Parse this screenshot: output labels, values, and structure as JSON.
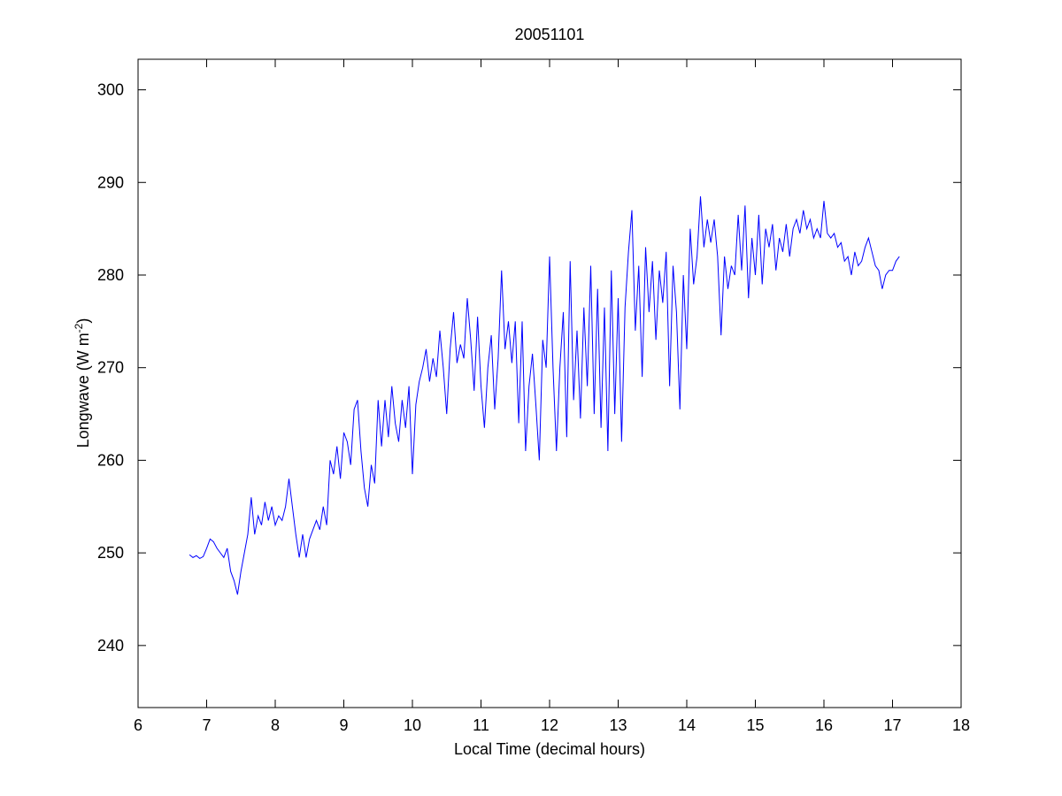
{
  "chart_data": {
    "type": "line",
    "title": "20051101",
    "x_label": "Local Time (decimal hours)",
    "y_label": {
      "text": "Longwave (W m",
      "superscript": "-2",
      "suffix": ")"
    },
    "color": "#0000ff",
    "grid": false,
    "xlim": [
      6,
      18
    ],
    "xticks": [
      6,
      7,
      8,
      9,
      10,
      11,
      12,
      13,
      14,
      15,
      16,
      17,
      18
    ],
    "ylim": [
      233.3,
      303.3
    ],
    "yticks": [
      240,
      250,
      260,
      270,
      280,
      290,
      300
    ],
    "x": [
      6.75,
      6.8,
      6.85,
      6.9,
      6.95,
      7.0,
      7.05,
      7.1,
      7.15,
      7.2,
      7.25,
      7.3,
      7.35,
      7.4,
      7.45,
      7.5,
      7.55,
      7.6,
      7.65,
      7.7,
      7.75,
      7.8,
      7.85,
      7.9,
      7.95,
      8.0,
      8.05,
      8.1,
      8.15,
      8.2,
      8.25,
      8.3,
      8.35,
      8.4,
      8.45,
      8.5,
      8.55,
      8.6,
      8.65,
      8.7,
      8.75,
      8.8,
      8.85,
      8.9,
      8.95,
      9.0,
      9.05,
      9.1,
      9.15,
      9.2,
      9.25,
      9.3,
      9.35,
      9.4,
      9.45,
      9.5,
      9.55,
      9.6,
      9.65,
      9.7,
      9.75,
      9.8,
      9.85,
      9.9,
      9.95,
      10.0,
      10.05,
      10.1,
      10.15,
      10.2,
      10.25,
      10.3,
      10.35,
      10.4,
      10.45,
      10.5,
      10.55,
      10.6,
      10.65,
      10.7,
      10.75,
      10.8,
      10.85,
      10.9,
      10.95,
      11.0,
      11.05,
      11.1,
      11.15,
      11.2,
      11.25,
      11.3,
      11.35,
      11.4,
      11.45,
      11.5,
      11.55,
      11.6,
      11.65,
      11.7,
      11.75,
      11.8,
      11.85,
      11.9,
      11.95,
      12.0,
      12.05,
      12.1,
      12.15,
      12.2,
      12.25,
      12.3,
      12.35,
      12.4,
      12.45,
      12.5,
      12.55,
      12.6,
      12.65,
      12.7,
      12.75,
      12.8,
      12.85,
      12.9,
      12.95,
      13.0,
      13.05,
      13.1,
      13.15,
      13.2,
      13.25,
      13.3,
      13.35,
      13.4,
      13.45,
      13.5,
      13.55,
      13.6,
      13.65,
      13.7,
      13.75,
      13.8,
      13.85,
      13.9,
      13.95,
      14.0,
      14.05,
      14.1,
      14.15,
      14.2,
      14.25,
      14.3,
      14.35,
      14.4,
      14.45,
      14.5,
      14.55,
      14.6,
      14.65,
      14.7,
      14.75,
      14.8,
      14.85,
      14.9,
      14.95,
      15.0,
      15.05,
      15.1,
      15.15,
      15.2,
      15.25,
      15.3,
      15.35,
      15.4,
      15.45,
      15.5,
      15.55,
      15.6,
      15.65,
      15.7,
      15.75,
      15.8,
      15.85,
      15.9,
      15.95,
      16.0,
      16.05,
      16.1,
      16.15,
      16.2,
      16.25,
      16.3,
      16.35,
      16.4,
      16.45,
      16.5,
      16.55,
      16.6,
      16.65,
      16.7,
      16.75,
      16.8,
      16.85,
      16.9,
      16.95,
      17.0,
      17.05,
      17.1
    ],
    "values": [
      249.8,
      249.5,
      249.7,
      249.4,
      249.6,
      250.5,
      251.5,
      251.2,
      250.5,
      250.0,
      249.5,
      250.5,
      248.0,
      247.0,
      245.5,
      248.0,
      250.0,
      252.0,
      256.0,
      252.0,
      254.0,
      253.0,
      255.5,
      253.5,
      255.0,
      253.0,
      254.0,
      253.5,
      255.0,
      258.0,
      255.0,
      252.0,
      249.5,
      252.0,
      249.5,
      251.5,
      252.5,
      253.5,
      252.5,
      255.0,
      253.0,
      260.0,
      258.5,
      261.5,
      258.0,
      263.0,
      262.0,
      259.5,
      265.5,
      266.5,
      261.0,
      257.0,
      255.0,
      259.5,
      257.5,
      266.5,
      261.5,
      266.5,
      262.5,
      268.0,
      264.0,
      262.0,
      266.5,
      263.5,
      268.0,
      258.5,
      266.0,
      268.5,
      270.0,
      272.0,
      268.5,
      271.0,
      269.0,
      274.0,
      270.0,
      265.0,
      272.0,
      276.0,
      270.5,
      272.5,
      271.0,
      277.5,
      273.0,
      267.5,
      275.5,
      268.0,
      263.5,
      270.0,
      273.5,
      265.5,
      271.0,
      280.5,
      272.0,
      275.0,
      270.5,
      275.0,
      264.0,
      275.0,
      261.0,
      268.0,
      271.5,
      266.0,
      260.0,
      273.0,
      270.0,
      282.0,
      270.0,
      261.0,
      270.0,
      276.0,
      262.5,
      281.5,
      266.5,
      274.0,
      264.5,
      276.5,
      268.0,
      281.0,
      265.0,
      278.5,
      263.5,
      276.5,
      261.0,
      280.5,
      265.0,
      277.5,
      262.0,
      276.5,
      282.5,
      287.0,
      274.0,
      281.0,
      269.0,
      283.0,
      276.0,
      281.5,
      273.0,
      280.5,
      277.0,
      282.5,
      268.0,
      281.0,
      276.0,
      265.5,
      280.0,
      272.0,
      285.0,
      279.0,
      282.0,
      288.5,
      283.0,
      286.0,
      283.5,
      286.0,
      282.0,
      273.5,
      282.0,
      278.5,
      281.0,
      280.0,
      286.5,
      280.5,
      287.5,
      277.5,
      284.0,
      280.0,
      286.5,
      279.0,
      285.0,
      283.0,
      285.5,
      280.5,
      284.0,
      282.5,
      285.5,
      282.0,
      285.0,
      286.0,
      284.5,
      287.0,
      285.0,
      286.0,
      284.0,
      285.0,
      284.0,
      288.0,
      284.5,
      284.0,
      284.5,
      283.0,
      283.5,
      281.5,
      282.0,
      280.0,
      282.5,
      281.0,
      281.5,
      283.0,
      284.0,
      282.5,
      281.0,
      280.5,
      278.5,
      280.0,
      280.5,
      280.5,
      281.5,
      282.0
    ]
  }
}
